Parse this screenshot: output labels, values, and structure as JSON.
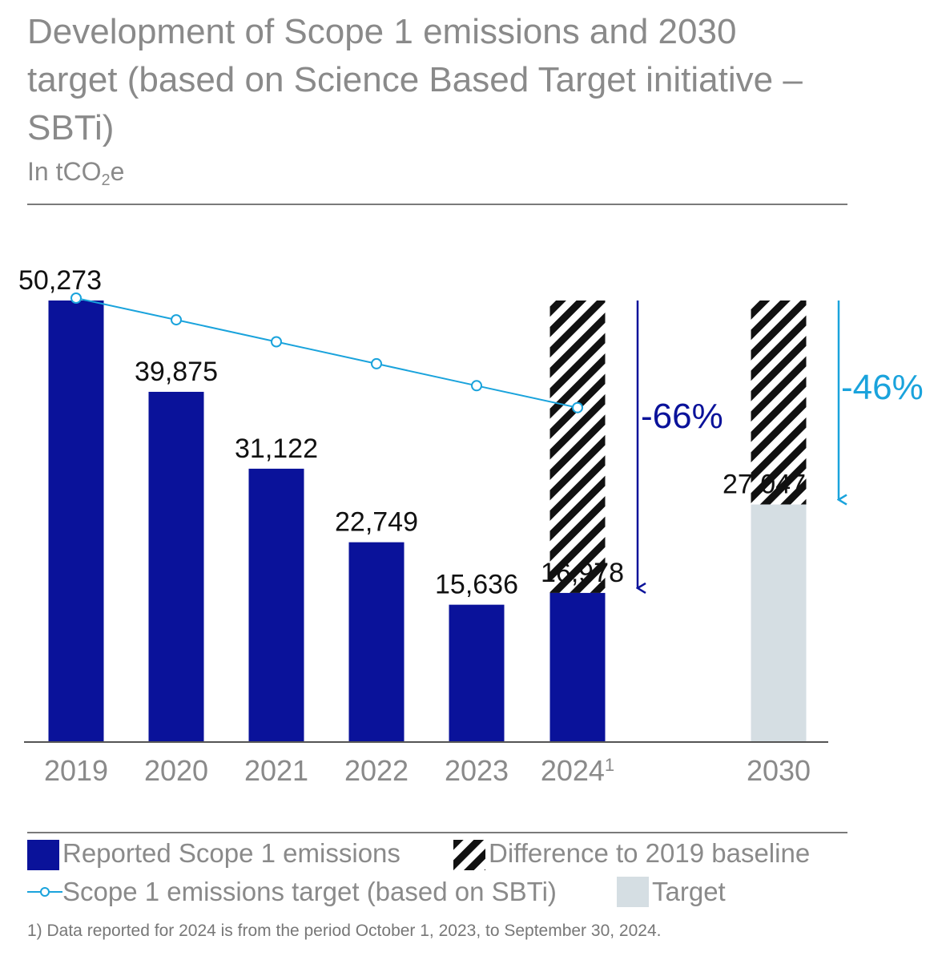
{
  "title": "Development of Scope 1 emissions and 2030 target (based on Science Based Target initiative – SBTi)",
  "subtitle": {
    "prefix": "In tCO",
    "sub": "2",
    "suffix": "e"
  },
  "chart_data": {
    "type": "bar",
    "categories": [
      "2019",
      "2020",
      "2021",
      "2022",
      "2023",
      "2024",
      "2030"
    ],
    "category_footnote_marks": {
      "2024": "1"
    },
    "series": [
      {
        "name": "Reported Scope 1 emissions",
        "values": [
          50273,
          39875,
          31122,
          22749,
          15636,
          16978,
          null
        ],
        "color": "#0a129a"
      },
      {
        "name": "Difference to 2019 baseline",
        "baseline": 50273,
        "categories": [
          "2024",
          "2030"
        ],
        "pattern": "diagonal-hatch"
      },
      {
        "name": "Scope 1 emissions target (based on SBTi)",
        "type": "line",
        "values": [
          50273,
          47800,
          45300,
          42800,
          40300,
          37800,
          null
        ],
        "color": "#1aa3dc"
      },
      {
        "name": "Target",
        "values": [
          null,
          null,
          null,
          null,
          null,
          null,
          27047
        ],
        "color": "#d5dee3"
      }
    ],
    "data_labels": [
      "50,273",
      "39,875",
      "31,122",
      "22,749",
      "15,636",
      "16,978",
      "27,047"
    ],
    "annotations": [
      {
        "text": "-66%",
        "category": "2024",
        "from": 50273,
        "to": 16978,
        "color": "#0a129a"
      },
      {
        "text": "-46%",
        "category": "2030",
        "from": 50273,
        "to": 27047,
        "color": "#1aa3dc"
      }
    ],
    "ylim": [
      0,
      50273
    ],
    "grid": false,
    "legend_position": "bottom"
  },
  "legend": [
    {
      "label": "Reported Scope 1 emissions"
    },
    {
      "label": "Difference to 2019 baseline"
    },
    {
      "label": "Scope 1 emissions target (based on SBTi)"
    },
    {
      "label": "Target"
    }
  ],
  "footnote": "1) Data reported for 2024 is from the period October 1, 2023, to September 30, 2024."
}
